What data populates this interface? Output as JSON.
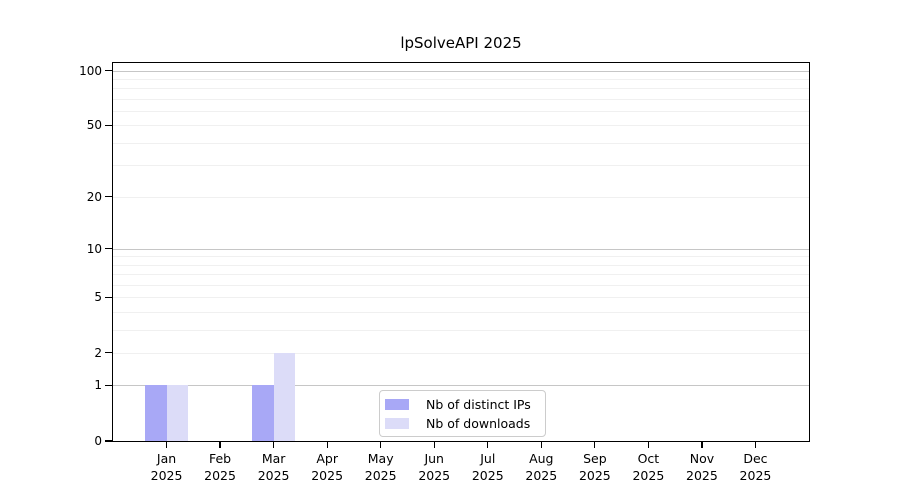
{
  "figure": {
    "background": "#ffffff"
  },
  "chart_data": {
    "type": "bar",
    "title": "lpSolveAPI 2025",
    "categories": [
      "Jan",
      "Feb",
      "Mar",
      "Apr",
      "May",
      "Jun",
      "Jul",
      "Aug",
      "Sep",
      "Oct",
      "Nov",
      "Dec"
    ],
    "category_year": "2025",
    "series": [
      {
        "name": "Nb of distinct IPs",
        "color": "#a8a8f6",
        "values": [
          1,
          0,
          1,
          0,
          0,
          0,
          0,
          0,
          0,
          0,
          0,
          0
        ]
      },
      {
        "name": "Nb of downloads",
        "color": "#dcdcf8",
        "values": [
          1,
          0,
          2,
          0,
          0,
          0,
          0,
          0,
          0,
          0,
          0,
          0
        ]
      }
    ],
    "xlabel": "",
    "ylabel": "",
    "y_axis": {
      "scale": "log1p",
      "tick_values": [
        0,
        1,
        2,
        5,
        10,
        20,
        50,
        100
      ],
      "ylim": [
        0,
        110
      ],
      "gridlines_major": [
        1,
        10,
        100
      ],
      "gridlines_minor": [
        2,
        3,
        4,
        5,
        6,
        7,
        8,
        9,
        20,
        30,
        40,
        50,
        60,
        70,
        80,
        90
      ]
    },
    "legend": {
      "position": "bottom-center-inside",
      "entries": [
        "Nb of distinct IPs",
        "Nb of downloads"
      ]
    },
    "colors": {
      "grid_major": "#c6c6c6",
      "grid_minor": "#f0f0f0",
      "spine": "#000000",
      "text": "#000000"
    }
  }
}
